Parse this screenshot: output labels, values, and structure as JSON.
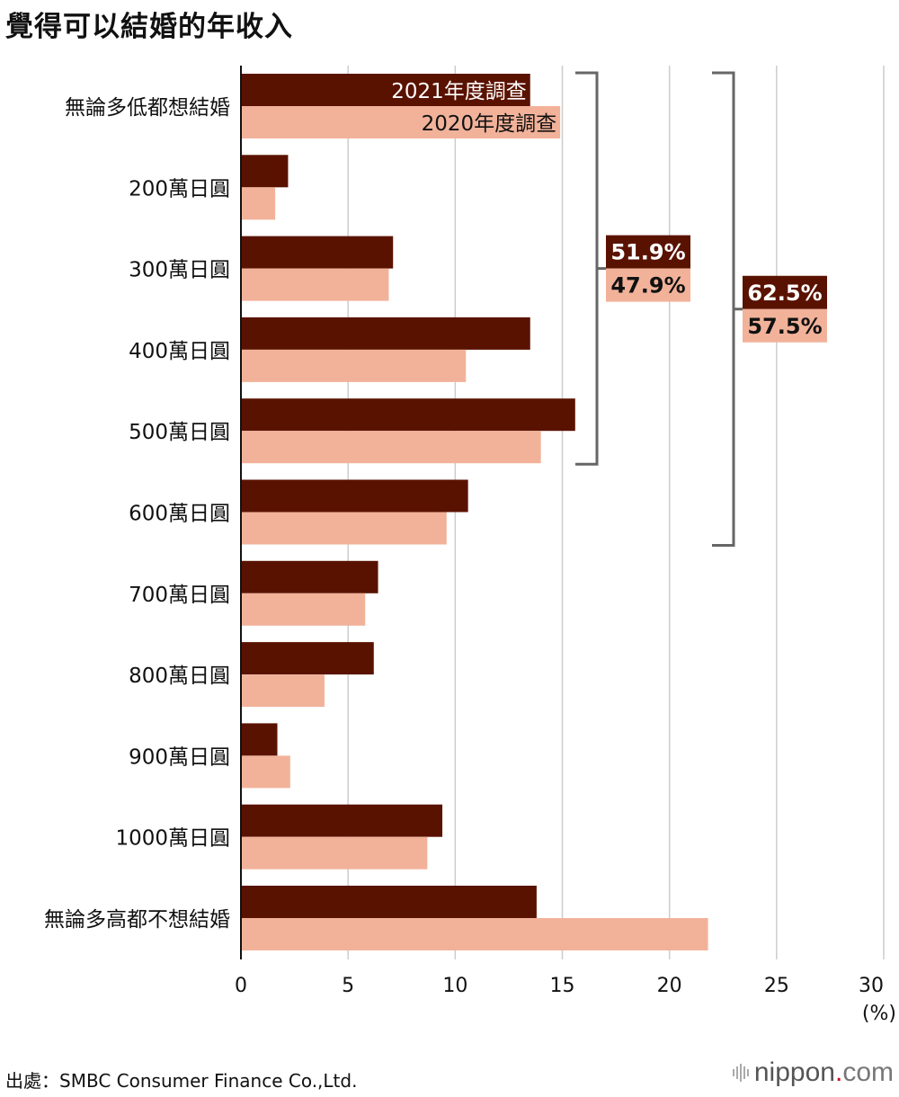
{
  "title": "覺得可以結婚的年收入",
  "source": "出處：SMBC Consumer Finance Co.,Ltd.",
  "logo": {
    "name": "nippon",
    "dot": ".",
    "suffix": "com"
  },
  "colors": {
    "series2021": "#5a1200",
    "series2020": "#f2b29a",
    "grid": "#cccccc",
    "bracket": "#666666"
  },
  "chart_data": {
    "type": "bar",
    "orientation": "horizontal",
    "title": "覺得可以結婚的年收入",
    "categories": [
      "無論多低都想結婚",
      "200萬日圓",
      "300萬日圓",
      "400萬日圓",
      "500萬日圓",
      "600萬日圓",
      "700萬日圓",
      "800萬日圓",
      "900萬日圓",
      "1000萬日圓",
      "無論多高都不想結婚"
    ],
    "series": [
      {
        "name": "2021年度調查",
        "values": [
          13.5,
          2.2,
          7.1,
          13.5,
          15.6,
          10.6,
          6.4,
          6.2,
          1.7,
          9.4,
          13.8
        ]
      },
      {
        "name": "2020年度調查",
        "values": [
          14.9,
          1.6,
          6.9,
          10.5,
          14.0,
          9.6,
          5.8,
          3.9,
          2.3,
          8.7,
          21.8
        ]
      }
    ],
    "xlim": [
      0,
      30
    ],
    "xticks": [
      0,
      5,
      10,
      15,
      20,
      25,
      30
    ],
    "xunit": "(%)",
    "brackets": [
      {
        "from": 0,
        "to": 4,
        "label2021": "51.9%",
        "label2020": "47.9%"
      },
      {
        "from": 0,
        "to": 5,
        "label2021": "62.5%",
        "label2020": "57.5%"
      }
    ]
  }
}
